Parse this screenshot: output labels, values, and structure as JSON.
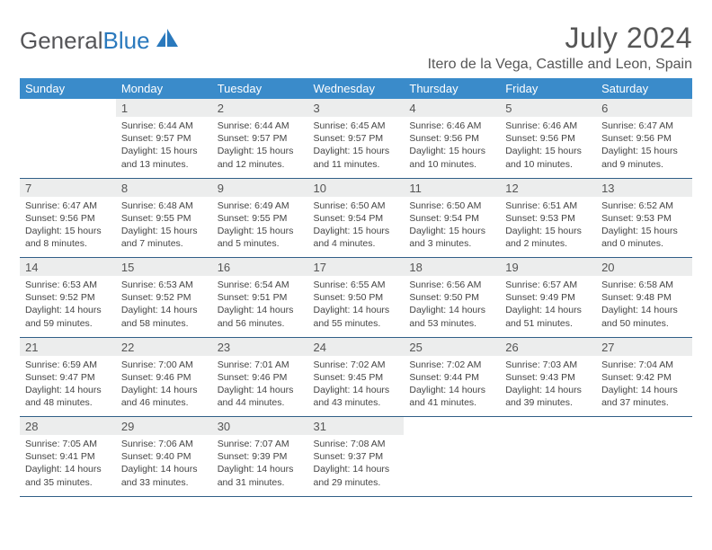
{
  "brand": {
    "part1": "General",
    "part2": "Blue"
  },
  "title": "July 2024",
  "location": "Itero de la Vega, Castille and Leon, Spain",
  "colors": {
    "header_bg": "#3a8bca",
    "header_text": "#ffffff",
    "daynum_bg": "#eceded",
    "border": "#315f87",
    "text": "#444444",
    "brand_gray": "#555558",
    "brand_blue": "#2a79bd"
  },
  "weekdays": [
    "Sunday",
    "Monday",
    "Tuesday",
    "Wednesday",
    "Thursday",
    "Friday",
    "Saturday"
  ],
  "weeks": [
    [
      null,
      {
        "n": "1",
        "sr": "6:44 AM",
        "ss": "9:57 PM",
        "dl": "15 hours and 13 minutes."
      },
      {
        "n": "2",
        "sr": "6:44 AM",
        "ss": "9:57 PM",
        "dl": "15 hours and 12 minutes."
      },
      {
        "n": "3",
        "sr": "6:45 AM",
        "ss": "9:57 PM",
        "dl": "15 hours and 11 minutes."
      },
      {
        "n": "4",
        "sr": "6:46 AM",
        "ss": "9:56 PM",
        "dl": "15 hours and 10 minutes."
      },
      {
        "n": "5",
        "sr": "6:46 AM",
        "ss": "9:56 PM",
        "dl": "15 hours and 10 minutes."
      },
      {
        "n": "6",
        "sr": "6:47 AM",
        "ss": "9:56 PM",
        "dl": "15 hours and 9 minutes."
      }
    ],
    [
      {
        "n": "7",
        "sr": "6:47 AM",
        "ss": "9:56 PM",
        "dl": "15 hours and 8 minutes."
      },
      {
        "n": "8",
        "sr": "6:48 AM",
        "ss": "9:55 PM",
        "dl": "15 hours and 7 minutes."
      },
      {
        "n": "9",
        "sr": "6:49 AM",
        "ss": "9:55 PM",
        "dl": "15 hours and 5 minutes."
      },
      {
        "n": "10",
        "sr": "6:50 AM",
        "ss": "9:54 PM",
        "dl": "15 hours and 4 minutes."
      },
      {
        "n": "11",
        "sr": "6:50 AM",
        "ss": "9:54 PM",
        "dl": "15 hours and 3 minutes."
      },
      {
        "n": "12",
        "sr": "6:51 AM",
        "ss": "9:53 PM",
        "dl": "15 hours and 2 minutes."
      },
      {
        "n": "13",
        "sr": "6:52 AM",
        "ss": "9:53 PM",
        "dl": "15 hours and 0 minutes."
      }
    ],
    [
      {
        "n": "14",
        "sr": "6:53 AM",
        "ss": "9:52 PM",
        "dl": "14 hours and 59 minutes."
      },
      {
        "n": "15",
        "sr": "6:53 AM",
        "ss": "9:52 PM",
        "dl": "14 hours and 58 minutes."
      },
      {
        "n": "16",
        "sr": "6:54 AM",
        "ss": "9:51 PM",
        "dl": "14 hours and 56 minutes."
      },
      {
        "n": "17",
        "sr": "6:55 AM",
        "ss": "9:50 PM",
        "dl": "14 hours and 55 minutes."
      },
      {
        "n": "18",
        "sr": "6:56 AM",
        "ss": "9:50 PM",
        "dl": "14 hours and 53 minutes."
      },
      {
        "n": "19",
        "sr": "6:57 AM",
        "ss": "9:49 PM",
        "dl": "14 hours and 51 minutes."
      },
      {
        "n": "20",
        "sr": "6:58 AM",
        "ss": "9:48 PM",
        "dl": "14 hours and 50 minutes."
      }
    ],
    [
      {
        "n": "21",
        "sr": "6:59 AM",
        "ss": "9:47 PM",
        "dl": "14 hours and 48 minutes."
      },
      {
        "n": "22",
        "sr": "7:00 AM",
        "ss": "9:46 PM",
        "dl": "14 hours and 46 minutes."
      },
      {
        "n": "23",
        "sr": "7:01 AM",
        "ss": "9:46 PM",
        "dl": "14 hours and 44 minutes."
      },
      {
        "n": "24",
        "sr": "7:02 AM",
        "ss": "9:45 PM",
        "dl": "14 hours and 43 minutes."
      },
      {
        "n": "25",
        "sr": "7:02 AM",
        "ss": "9:44 PM",
        "dl": "14 hours and 41 minutes."
      },
      {
        "n": "26",
        "sr": "7:03 AM",
        "ss": "9:43 PM",
        "dl": "14 hours and 39 minutes."
      },
      {
        "n": "27",
        "sr": "7:04 AM",
        "ss": "9:42 PM",
        "dl": "14 hours and 37 minutes."
      }
    ],
    [
      {
        "n": "28",
        "sr": "7:05 AM",
        "ss": "9:41 PM",
        "dl": "14 hours and 35 minutes."
      },
      {
        "n": "29",
        "sr": "7:06 AM",
        "ss": "9:40 PM",
        "dl": "14 hours and 33 minutes."
      },
      {
        "n": "30",
        "sr": "7:07 AM",
        "ss": "9:39 PM",
        "dl": "14 hours and 31 minutes."
      },
      {
        "n": "31",
        "sr": "7:08 AM",
        "ss": "9:37 PM",
        "dl": "14 hours and 29 minutes."
      },
      null,
      null,
      null
    ]
  ],
  "labels": {
    "sunrise": "Sunrise:",
    "sunset": "Sunset:",
    "daylight": "Daylight:"
  }
}
